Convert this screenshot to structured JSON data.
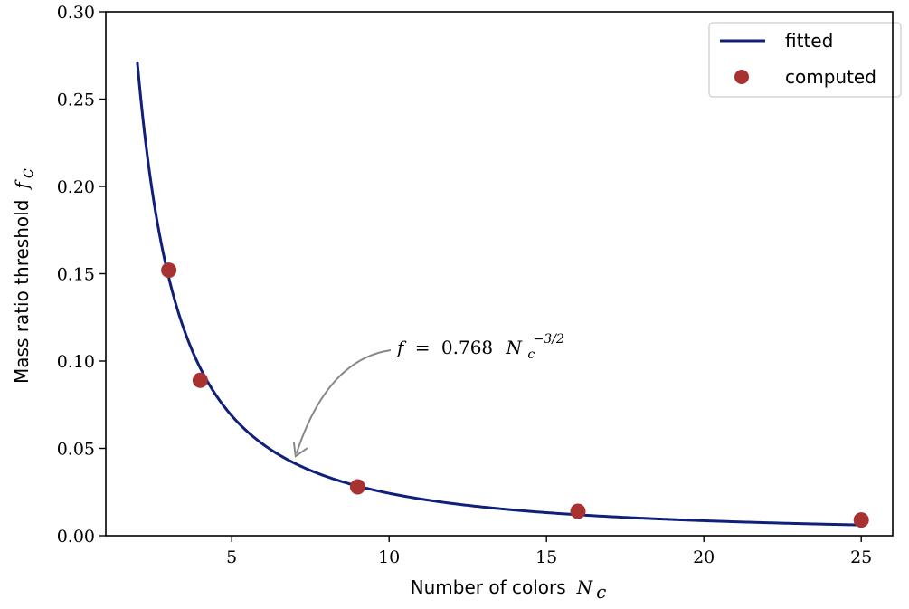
{
  "chart_data": {
    "type": "line",
    "xlabel": "Number of colors",
    "xlabel_symbol": "N",
    "xlabel_symbol_sub": "c",
    "ylabel": "Mass ratio threshold",
    "ylabel_symbol": "f",
    "ylabel_symbol_sub": "c",
    "xlim": [
      1,
      26
    ],
    "ylim": [
      0,
      0.3
    ],
    "x_ticks": [
      5,
      10,
      15,
      20,
      25
    ],
    "x_tick_labels": [
      "5",
      "10",
      "15",
      "20",
      "25"
    ],
    "y_ticks": [
      0.0,
      0.05,
      0.1,
      0.15,
      0.2,
      0.25,
      0.3
    ],
    "y_tick_labels": [
      "0.00",
      "0.05",
      "0.10",
      "0.15",
      "0.20",
      "0.25",
      "0.30"
    ],
    "grid": false,
    "legend_position": "top-right",
    "series": [
      {
        "name": "fitted",
        "kind": "line",
        "color": "#0f1f7a",
        "function": {
          "coefficient": 0.768,
          "exponent": -1.5,
          "x_range": [
            2,
            25
          ]
        }
      },
      {
        "name": "computed",
        "kind": "scatter",
        "color": "#a83232",
        "x": [
          3,
          4,
          9,
          16,
          25
        ],
        "y": [
          0.152,
          0.089,
          0.028,
          0.014,
          0.009
        ]
      }
    ],
    "annotation": {
      "lhs": "f",
      "equals": "=",
      "coefficient": "0.768",
      "symbol": "N",
      "symbol_sub": "c",
      "exponent": "−3/2",
      "arrow_target": {
        "x": 7,
        "y": 0.045
      },
      "arrow_color": "#888888"
    }
  }
}
